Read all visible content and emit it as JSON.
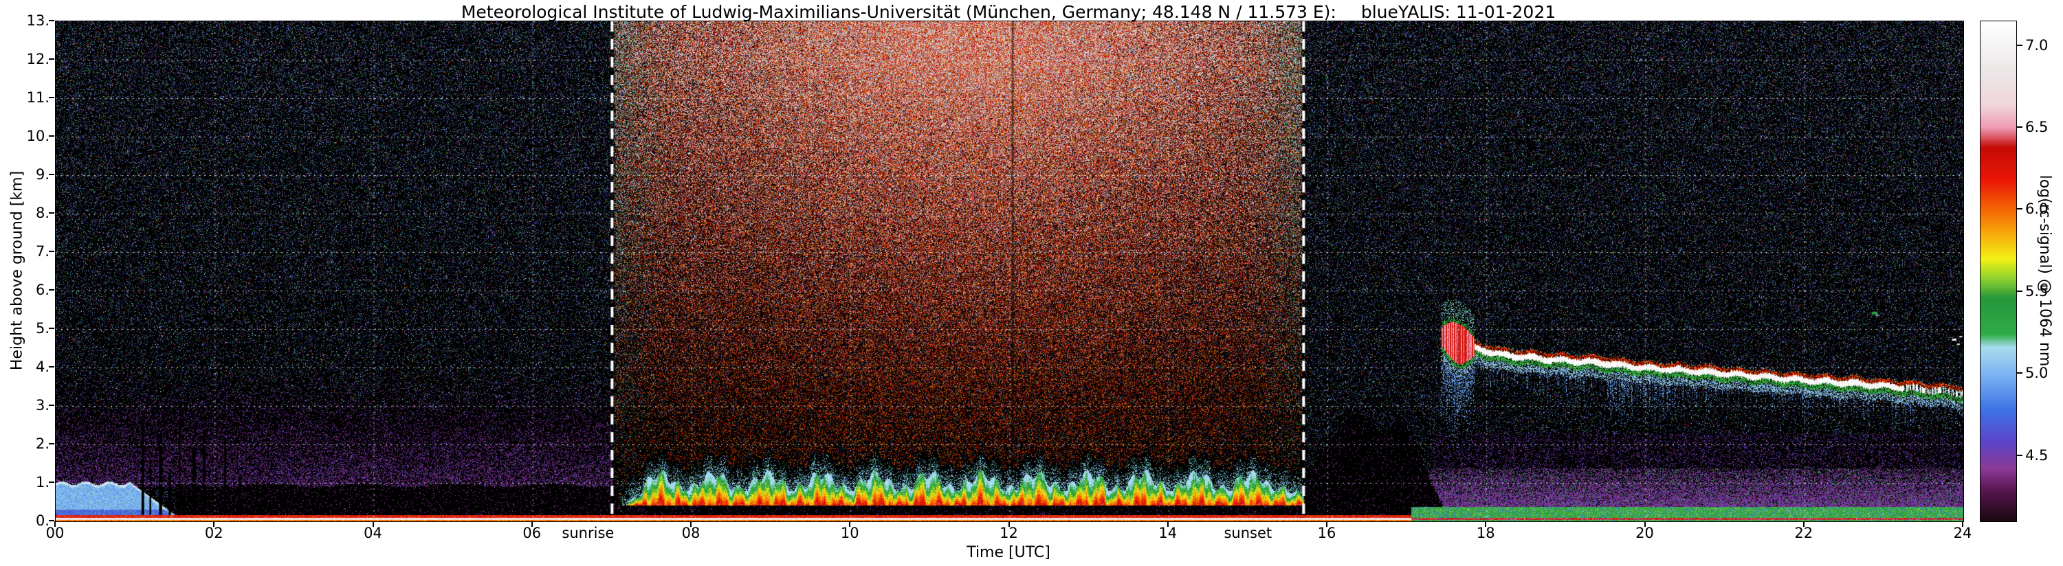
{
  "title": {
    "main": "Meteorological Institute of Ludwig-Maximilians-Universität (München, Germany; 48.148 N / 11.573 E):",
    "run": "blueYALIS: 11-01-2021"
  },
  "axes": {
    "xlabel": "Time [UTC]",
    "ylabel": "Height above ground [km]",
    "x_ticks": [
      {
        "v": 0,
        "label": "00"
      },
      {
        "v": 2,
        "label": "02"
      },
      {
        "v": 4,
        "label": "04"
      },
      {
        "v": 6,
        "label": "06"
      },
      {
        "v": 8,
        "label": "08"
      },
      {
        "v": 10,
        "label": "10"
      },
      {
        "v": 12,
        "label": "12"
      },
      {
        "v": 14,
        "label": "14"
      },
      {
        "v": 16,
        "label": "16"
      },
      {
        "v": 18,
        "label": "18"
      },
      {
        "v": 20,
        "label": "20"
      },
      {
        "v": 22,
        "label": "22"
      },
      {
        "v": 24,
        "label": "24"
      }
    ],
    "y_ticks": [
      {
        "v": 0,
        "label": "0."
      },
      {
        "v": 1,
        "label": "1."
      },
      {
        "v": 2,
        "label": "2."
      },
      {
        "v": 3,
        "label": "3."
      },
      {
        "v": 4,
        "label": "4."
      },
      {
        "v": 5,
        "label": "5."
      },
      {
        "v": 6,
        "label": "6."
      },
      {
        "v": 7,
        "label": "7."
      },
      {
        "v": 8,
        "label": "8."
      },
      {
        "v": 9,
        "label": "9."
      },
      {
        "v": 10,
        "label": "10."
      },
      {
        "v": 11,
        "label": "11."
      },
      {
        "v": 12,
        "label": "12."
      },
      {
        "v": 13,
        "label": "13."
      }
    ],
    "grid": {
      "x_step": 2,
      "y_step": 1
    },
    "annotations": [
      {
        "text": "sunrise",
        "t": 7.0,
        "dx": -34
      },
      {
        "text": "sunset",
        "t": 15.7,
        "dx": -80
      }
    ]
  },
  "colorbar": {
    "label": "log(rc-signal) @ 1064 nm",
    "vmin": 4.1,
    "vmax": 7.15,
    "ticks": [
      4.5,
      5.0,
      5.5,
      6.0,
      6.5,
      7.0
    ],
    "stops": [
      {
        "v": 4.1,
        "c": "#1c0812"
      },
      {
        "v": 4.28,
        "c": "#55164e"
      },
      {
        "v": 4.42,
        "c": "#8c3a96"
      },
      {
        "v": 4.58,
        "c": "#5d44c9"
      },
      {
        "v": 4.78,
        "c": "#3e74e6"
      },
      {
        "v": 5.0,
        "c": "#7fb5f2"
      },
      {
        "v": 5.16,
        "c": "#a8dcee"
      },
      {
        "v": 5.24,
        "c": "#2fae49"
      },
      {
        "v": 5.46,
        "c": "#27963c"
      },
      {
        "v": 5.58,
        "c": "#8ed42f"
      },
      {
        "v": 5.7,
        "c": "#f2f216"
      },
      {
        "v": 5.86,
        "c": "#f8a80a"
      },
      {
        "v": 6.02,
        "c": "#f45f04"
      },
      {
        "v": 6.18,
        "c": "#ec1808"
      },
      {
        "v": 6.38,
        "c": "#c50b06"
      },
      {
        "v": 6.5,
        "c": "#ef9ab4"
      },
      {
        "v": 6.64,
        "c": "#f2d7dc"
      },
      {
        "v": 6.85,
        "c": "#ece8e8"
      },
      {
        "v": 7.15,
        "c": "#ffffff"
      }
    ]
  },
  "chart_data": {
    "type": "heatmap",
    "quantity": "log(rc-signal) @ 1064 nm",
    "x_range": [
      0,
      24
    ],
    "y_range": [
      0,
      13
    ],
    "x_unit": "hours UTC",
    "y_unit": "km above ground",
    "value_range": [
      4.1,
      7.15
    ],
    "sunrise_utc": 7.0,
    "sunset_utc": 15.7,
    "features": {
      "surface_echo_layer": {
        "t": [
          0,
          24
        ],
        "h": [
          0,
          0.17
        ],
        "value": [
          5.8,
          7.1
        ]
      },
      "morning_low_cloud": {
        "t": [
          0,
          1.62
        ],
        "h": [
          0.17,
          1.05
        ],
        "value": [
          4.85,
          5.15
        ],
        "cloud_top_value": 6.9
      },
      "dropout_streaks": [
        {
          "t": 1.08,
          "top": 2.55
        },
        {
          "t": 1.18,
          "top": 1.6
        },
        {
          "t": 1.3,
          "top": 2.3
        },
        {
          "t": 1.42,
          "top": 1.25
        },
        {
          "t": 1.55,
          "top": 2.65
        },
        {
          "t": 1.72,
          "top": 1.9
        },
        {
          "t": 1.85,
          "top": 2.35
        },
        {
          "t": 2.0,
          "top": 1.45
        },
        {
          "t": 2.12,
          "top": 2.1
        },
        {
          "t": 2.3,
          "top": 1.2
        },
        {
          "t": 2.62,
          "top": 1.05
        }
      ],
      "night_attenuated_zone": {
        "t": [
          1.5,
          7.08
        ],
        "h": [
          0.17,
          0.95
        ]
      },
      "morning_haze": {
        "t": [
          0,
          7.05
        ],
        "h": [
          0.9,
          4.3
        ],
        "value": [
          4.28,
          4.6
        ]
      },
      "daytime_noise": {
        "t": [
          7.0,
          15.7
        ],
        "h": [
          1.3,
          13
        ],
        "value": [
          5.7,
          7.15
        ],
        "peak_hour": 11.6
      },
      "convective_boundary_layer": {
        "t": [
          7.12,
          15.72
        ],
        "h": [
          0.42,
          1.45
        ],
        "value": [
          5.15,
          6.45
        ],
        "dark_sublayer": [
          0.17,
          0.42
        ]
      },
      "post_sunset_attenuated_zone": {
        "t": [
          15.72,
          17.45
        ],
        "h": [
          0,
          2.8
        ]
      },
      "evening_surface_band": {
        "t": [
          17.05,
          24
        ],
        "h": [
          0,
          0.38
        ],
        "value": [
          5.2,
          5.65
        ]
      },
      "evening_aerosol_layer": {
        "t": [
          17.05,
          24
        ],
        "h": [
          0.38,
          1.38
        ],
        "value": [
          4.3,
          4.6
        ]
      },
      "evening_cloud_layer": {
        "base_points": [
          [
            17.42,
            4.75
          ],
          [
            17.6,
            4.68
          ],
          [
            17.8,
            4.52
          ],
          [
            18.2,
            4.32
          ],
          [
            18.8,
            4.2
          ],
          [
            19.4,
            4.12
          ],
          [
            20.0,
            3.98
          ],
          [
            20.6,
            3.9
          ],
          [
            21.2,
            3.8
          ],
          [
            21.9,
            3.68
          ],
          [
            22.6,
            3.58
          ],
          [
            23.2,
            3.48
          ],
          [
            24.0,
            3.33
          ]
        ],
        "core_value": 7.0,
        "top_fringe_value": 6.1,
        "bottom_fringe_value": 5.35,
        "virga_value": 4.9,
        "gappy_after": 23.25
      },
      "cloud_onset_blob": {
        "t": [
          17.42,
          17.85
        ],
        "h": [
          4.0,
          5.3
        ],
        "value": [
          6.1,
          6.5
        ]
      },
      "small_echoes": [
        {
          "t": 22.85,
          "h": 5.45,
          "value": 5.35,
          "size": 4
        },
        {
          "t": 22.9,
          "h": 5.38,
          "value": 5.0,
          "size": 2
        },
        {
          "t": 23.86,
          "h": 4.75,
          "value": 7.0,
          "size": 3
        },
        {
          "t": 23.92,
          "h": 4.62,
          "value": 7.0,
          "size": 2
        },
        {
          "t": 23.95,
          "h": 4.82,
          "value": 6.9,
          "size": 2
        }
      ],
      "dark_column": {
        "t": 12.04
      },
      "night_noise": {
        "density": [
          0.12,
          0.22
        ],
        "value": [
          4.35,
          5.35
        ],
        "bright_fraction": 0.07
      }
    }
  }
}
